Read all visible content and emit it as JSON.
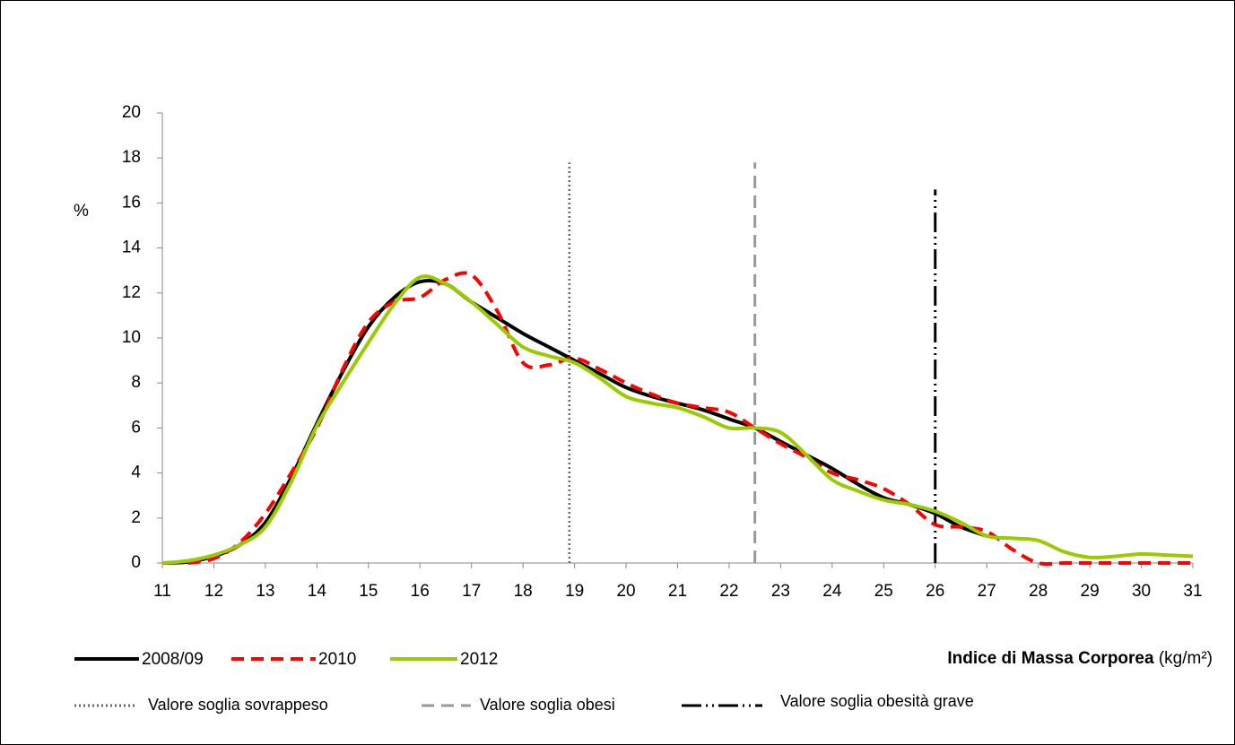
{
  "chart_data": {
    "type": "line",
    "y_label": "%",
    "x_label": "Indice di Massa Corporea",
    "x_unit": "(kg/m²)",
    "x": [
      11,
      11.5,
      12,
      12.5,
      13,
      13.5,
      14,
      14.5,
      15,
      15.5,
      16,
      16.5,
      17,
      17.5,
      18,
      18.5,
      19,
      19.5,
      20,
      20.5,
      21,
      21.5,
      22,
      22.5,
      23,
      23.5,
      24,
      24.5,
      25,
      25.5,
      26,
      26.5,
      27,
      27.5,
      28,
      28.5,
      29,
      29.5,
      30,
      30.5,
      31
    ],
    "series": [
      {
        "name": "2008/09",
        "color": "#000000",
        "dash": "solid",
        "values": [
          0,
          0.05,
          0.3,
          0.8,
          1.8,
          3.8,
          6.2,
          8.5,
          10.5,
          11.8,
          12.5,
          12.4,
          11.6,
          10.9,
          10.2,
          9.6,
          9.0,
          8.4,
          7.8,
          7.4,
          7.1,
          6.8,
          6.4,
          6.0,
          5.4,
          4.8,
          4.2,
          3.5,
          2.9,
          2.6,
          2.2,
          1.6,
          1.2,
          null,
          null,
          null,
          null,
          null,
          null,
          null,
          null
        ]
      },
      {
        "name": "2010",
        "color": "#ff0000",
        "dash": "dashed",
        "values": [
          null,
          0,
          0.2,
          0.9,
          2.2,
          4.0,
          6.0,
          8.6,
          10.7,
          11.6,
          11.8,
          12.6,
          12.8,
          11.2,
          8.9,
          8.8,
          9.1,
          8.6,
          8.0,
          7.5,
          7.1,
          6.9,
          6.7,
          6.0,
          5.3,
          4.7,
          4.0,
          3.7,
          3.3,
          2.6,
          1.7,
          1.6,
          1.4,
          0.6,
          0,
          0,
          0,
          0,
          0,
          0,
          0
        ]
      },
      {
        "name": "2012",
        "color": "#99cc00",
        "dash": "solid",
        "values": [
          0,
          0.1,
          0.35,
          0.8,
          1.6,
          3.6,
          6.1,
          8.0,
          9.8,
          11.5,
          12.7,
          12.4,
          11.6,
          10.6,
          9.6,
          9.2,
          8.9,
          8.2,
          7.4,
          7.1,
          6.9,
          6.5,
          6.0,
          6.0,
          5.8,
          4.8,
          3.7,
          3.2,
          2.8,
          2.6,
          2.3,
          1.8,
          1.2,
          1.1,
          1.0,
          0.5,
          0.25,
          0.3,
          0.4,
          0.35,
          0.3
        ]
      }
    ],
    "reference_lines": [
      {
        "name": "Valore soglia sovrappeso",
        "x": 18.9,
        "top": 17.8,
        "color": "#666666",
        "dash": "dotted"
      },
      {
        "name": "Valore soglia obesi",
        "x": 22.5,
        "top": 17.8,
        "color": "#999999",
        "dash": "dashed"
      },
      {
        "name": "Valore soglia obesità grave",
        "x": 26,
        "top": 16.6,
        "color": "#000000",
        "dash": "dashdot"
      }
    ],
    "xlim": [
      11,
      31
    ],
    "xticks": [
      11,
      12,
      13,
      14,
      15,
      16,
      17,
      18,
      19,
      20,
      21,
      22,
      23,
      24,
      25,
      26,
      27,
      28,
      29,
      30,
      31
    ],
    "ylim": [
      0,
      20
    ],
    "yticks": [
      0,
      2,
      4,
      6,
      8,
      10,
      12,
      14,
      16,
      18,
      20
    ],
    "grid": false
  }
}
